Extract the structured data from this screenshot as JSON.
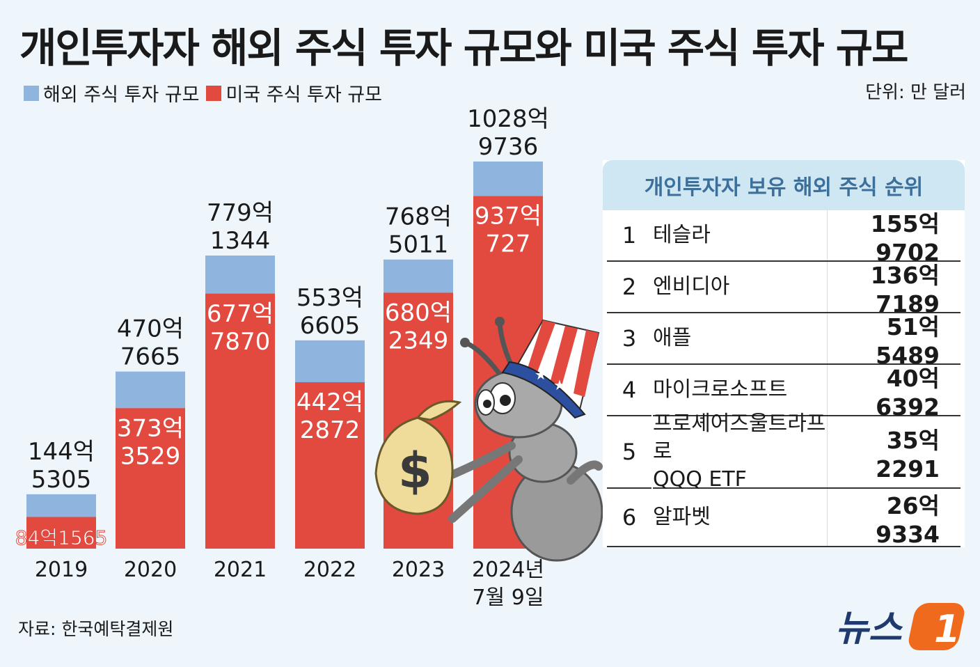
{
  "title": "개인투자자 해외 주식 투자 규모와 미국 주식 투자 규모",
  "unit": "단위: 만 달러",
  "source": "자료: 한국예탁결제원",
  "logo_text": "뉴스1",
  "colors": {
    "overseas": "#8fb4de",
    "us": "#e2493f",
    "background": "#eef5fb",
    "table_header": "#cfe6f3"
  },
  "chart_data": {
    "type": "bar",
    "stacked": "overlap",
    "categories": [
      "2019",
      "2020",
      "2021",
      "2022",
      "2023",
      "2024년 7월 9일"
    ],
    "series": [
      {
        "name": "해외 주식 투자 규모",
        "values": [
          1445305,
          4707665,
          7791344,
          5536605,
          7685011,
          10289736
        ],
        "labels": [
          [
            "144억",
            "5305"
          ],
          [
            "470억",
            "7665"
          ],
          [
            "779억",
            "1344"
          ],
          [
            "553억",
            "6605"
          ],
          [
            "768억",
            "5011"
          ],
          [
            "1028억",
            "9736"
          ]
        ]
      },
      {
        "name": "미국 주식 투자 규모",
        "values": [
          841565,
          3733529,
          6777870,
          4422872,
          6802349,
          9370727
        ],
        "labels": [
          [
            "84억1565"
          ],
          [
            "373억",
            "3529"
          ],
          [
            "677억",
            "7870"
          ],
          [
            "442억",
            "2872"
          ],
          [
            "680억",
            "2349"
          ],
          [
            "937억",
            "727"
          ]
        ]
      }
    ],
    "category_label_lines": [
      [
        "2019"
      ],
      [
        "2020"
      ],
      [
        "2021"
      ],
      [
        "2022"
      ],
      [
        "2023"
      ],
      [
        "2024년",
        "7월 9일"
      ]
    ],
    "legend_placement": "top-left",
    "grid": false
  },
  "ranking": {
    "header": "개인투자자 보유 해외 주식 순위",
    "rows": [
      {
        "rank": "1",
        "name": "테슬라",
        "name2": "",
        "value": "155억9702"
      },
      {
        "rank": "2",
        "name": "엔비디아",
        "name2": "",
        "value": "136억7189"
      },
      {
        "rank": "3",
        "name": "애플",
        "name2": "",
        "value": "51억5489"
      },
      {
        "rank": "4",
        "name": "마이크로소프트",
        "name2": "",
        "value": "40억6392"
      },
      {
        "rank": "5",
        "name": "프로셰어즈울트라프로",
        "name2": "QQQ ETF",
        "value": "35억2291"
      },
      {
        "rank": "6",
        "name": "알파벳",
        "name2": "",
        "value": "26억9334"
      }
    ]
  },
  "illustration": "ant-with-uncle-sam-hat-and-money-bag-icon"
}
